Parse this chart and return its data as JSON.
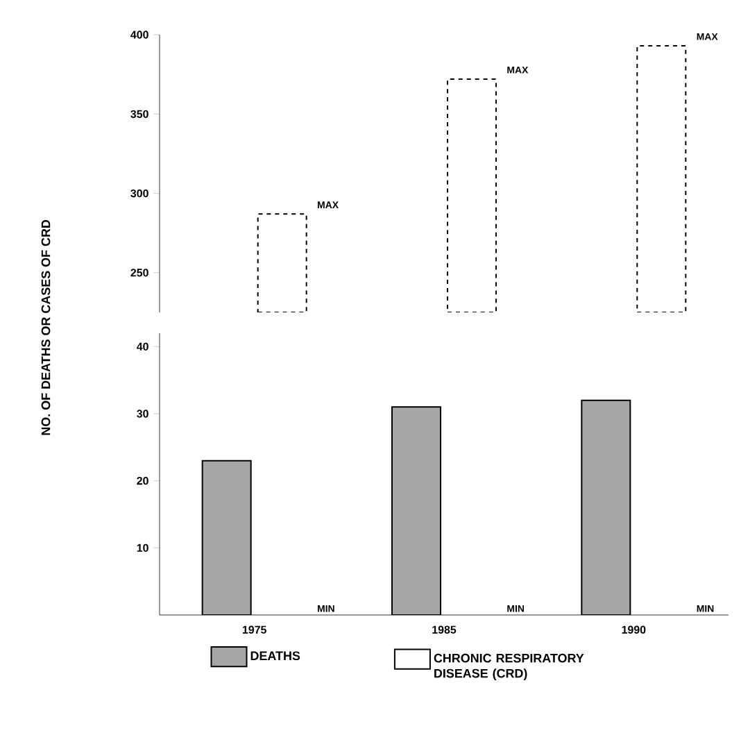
{
  "chart_data": [
    {
      "type": "bar",
      "categories": [
        "1975",
        "1985",
        "1990"
      ],
      "series": [
        {
          "name": "CHRONIC RESPIRATORY DISEASE (CRD)",
          "color": "#ffffff",
          "line_style": "dashed",
          "values": [
            287,
            372,
            393
          ]
        }
      ],
      "ylim": [
        225,
        400
      ],
      "yticks": [
        250,
        300,
        350,
        400
      ],
      "tick_labels": "y",
      "legend": "bottom",
      "annotations": [
        "MAX",
        "MAX",
        "MAX"
      ]
    },
    {
      "type": "bar",
      "categories": [
        "1975",
        "1985",
        "1990"
      ],
      "series": [
        {
          "name": "DEATHS",
          "color": "#a6a6a6",
          "values": [
            23,
            31,
            32
          ]
        }
      ],
      "ylim": [
        0,
        42
      ],
      "yticks": [
        10,
        20,
        30,
        40
      ],
      "legend": "bottom",
      "ylabel": "NO. OF DEATHS OR CASES OF CRD",
      "annotations": [
        "MIN",
        "MIN",
        "MIN"
      ]
    }
  ]
}
